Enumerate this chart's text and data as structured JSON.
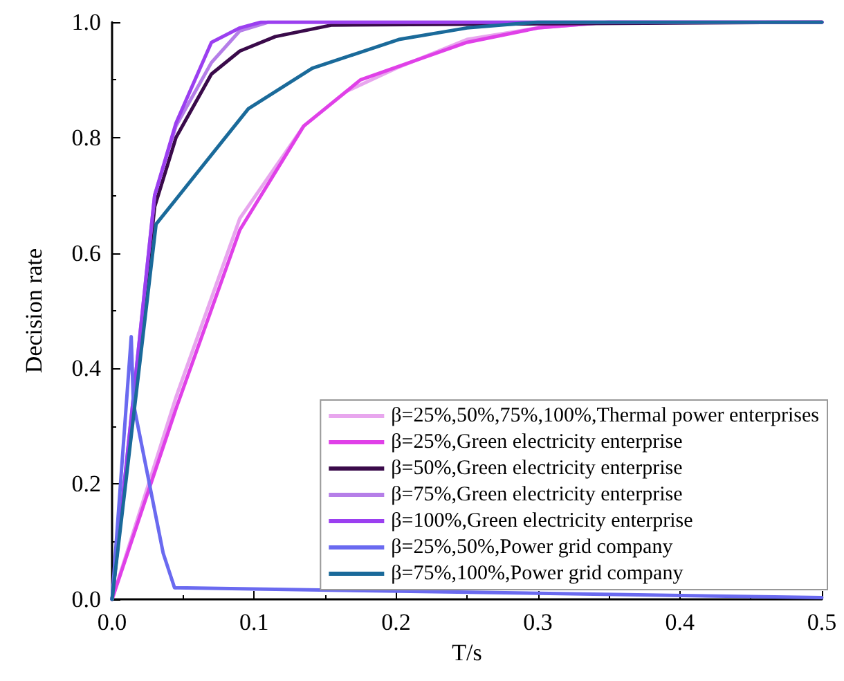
{
  "chart_data": {
    "type": "line",
    "xlabel": "T/s",
    "ylabel": "Decision rate",
    "xlim": [
      0,
      0.5
    ],
    "xticks": [
      {
        "value": 0,
        "label": "0.0"
      },
      0.1,
      0.2,
      0.3,
      0.4,
      0.5
    ],
    "ylim": [
      0,
      1.0
    ],
    "yticks": [
      {
        "value": 0,
        "label": "0.0"
      },
      0.2,
      0.4,
      0.6,
      0.8,
      {
        "value": 1,
        "label": "1.0"
      }
    ],
    "grid": false,
    "legend": "bottom right",
    "marker": "none",
    "line_style": "solid",
    "series": [
      {
        "name": "β=25%,50%,75%,100%,Thermal power enterprises",
        "color": "#e8a6ee",
        "x": [
          0,
          0.045,
          0.09,
          0.135,
          0.165,
          0.2,
          0.25,
          0.3,
          0.35,
          0.5
        ],
        "values": [
          0,
          0.35,
          0.66,
          0.82,
          0.88,
          0.92,
          0.97,
          0.99,
          1.0,
          1.0
        ]
      },
      {
        "name": "β=25%,Green electricity enterprise",
        "color": "#e040e8",
        "x": [
          0,
          0.045,
          0.09,
          0.135,
          0.175,
          0.25,
          0.3,
          0.35,
          0.5
        ],
        "values": [
          0,
          0.33,
          0.64,
          0.82,
          0.9,
          0.965,
          0.99,
          1.0,
          1.0
        ]
      },
      {
        "name": "β=50%,Green electricity enterprise",
        "color": "#3a0a4a",
        "x": [
          0,
          0.03,
          0.045,
          0.07,
          0.09,
          0.115,
          0.155,
          0.5
        ],
        "values": [
          0,
          0.68,
          0.8,
          0.91,
          0.95,
          0.975,
          0.995,
          1.0
        ]
      },
      {
        "name": "β=75%,Green electricity enterprise",
        "color": "#b57ee8",
        "x": [
          0,
          0.03,
          0.045,
          0.07,
          0.09,
          0.11,
          0.5
        ],
        "values": [
          0,
          0.7,
          0.82,
          0.93,
          0.985,
          1.0,
          1.0
        ]
      },
      {
        "name": "β=100%,Green electricity enterprise",
        "color": "#9b3ff0",
        "x": [
          0,
          0.03,
          0.045,
          0.07,
          0.09,
          0.105,
          0.5
        ],
        "values": [
          0,
          0.7,
          0.825,
          0.965,
          0.99,
          1.0,
          1.0
        ]
      },
      {
        "name": "β=25%,50%,Power grid company",
        "color": "#6a6af0",
        "x": [
          0,
          0.0135,
          0.015,
          0.036,
          0.044,
          0.5
        ],
        "values": [
          0,
          0.455,
          0.34,
          0.08,
          0.02,
          0.003
        ]
      },
      {
        "name": "β=75%,100%,Power grid company",
        "color": "#1a6a9a",
        "x": [
          0,
          0.031,
          0.096,
          0.141,
          0.202,
          0.25,
          0.3,
          0.5
        ],
        "values": [
          0,
          0.65,
          0.85,
          0.92,
          0.97,
          0.99,
          1.0,
          1.0
        ]
      }
    ]
  }
}
